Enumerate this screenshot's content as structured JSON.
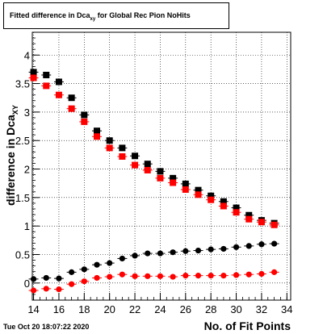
{
  "header": {
    "title_main": "Fitted difference in Dca",
    "title_sub": "xy",
    "title_tail": " for Global Rec Pion NoHits"
  },
  "footer": {
    "timestamp": "Tue Oct 20 18:07:22 2020"
  },
  "chart_data": {
    "type": "scatter",
    "title": "Fitted difference in Dca_xy for Global Rec Pion NoHits",
    "xlabel": "No. of Fit Points",
    "ylabel_main": "difference in Dca",
    "ylabel_sub": "XY",
    "xlim": [
      13.9,
      34.3
    ],
    "ylim": [
      -0.3,
      4.4
    ],
    "grid": true,
    "x_ticks": [
      14,
      16,
      18,
      20,
      22,
      24,
      26,
      28,
      30,
      32,
      34
    ],
    "y_ticks": [
      0,
      0.5,
      1,
      1.5,
      2,
      2.5,
      3,
      3.5,
      4
    ],
    "x_tick_labels": [
      "14",
      "16",
      "18",
      "20",
      "22",
      "24",
      "26",
      "28",
      "30",
      "32",
      "34"
    ],
    "y_tick_labels": [
      "0",
      "0.5",
      "1",
      "1.5",
      "2",
      "2.5",
      "3",
      "3.5",
      "4"
    ],
    "x": [
      14,
      15,
      16,
      17,
      18,
      19,
      20,
      21,
      22,
      23,
      24,
      25,
      26,
      27,
      28,
      29,
      30,
      31,
      32,
      33
    ],
    "series": [
      {
        "marker": "square",
        "color": "#000000",
        "values": [
          3.7,
          3.65,
          3.53,
          3.25,
          2.95,
          2.67,
          2.5,
          2.37,
          2.23,
          2.09,
          1.96,
          1.84,
          1.74,
          1.63,
          1.53,
          1.43,
          1.32,
          1.19,
          1.1,
          1.05
        ]
      },
      {
        "marker": "square",
        "color": "#ff0000",
        "values": [
          3.6,
          3.46,
          3.3,
          3.06,
          2.83,
          2.57,
          2.37,
          2.22,
          2.07,
          1.98,
          1.84,
          1.76,
          1.64,
          1.55,
          1.46,
          1.35,
          1.24,
          1.12,
          1.07,
          1.02
        ]
      },
      {
        "marker": "circle",
        "color": "#000000",
        "values": [
          0.07,
          0.09,
          0.08,
          0.19,
          0.24,
          0.32,
          0.35,
          0.43,
          0.48,
          0.52,
          0.52,
          0.54,
          0.56,
          0.57,
          0.59,
          0.6,
          0.63,
          0.65,
          0.68,
          0.69
        ]
      },
      {
        "marker": "circle",
        "color": "#ff0000",
        "values": [
          -0.13,
          -0.1,
          -0.11,
          -0.02,
          0.03,
          0.09,
          0.11,
          0.15,
          0.12,
          0.12,
          0.12,
          0.11,
          0.13,
          0.13,
          0.13,
          0.13,
          0.14,
          0.15,
          0.16,
          0.19
        ]
      }
    ]
  }
}
